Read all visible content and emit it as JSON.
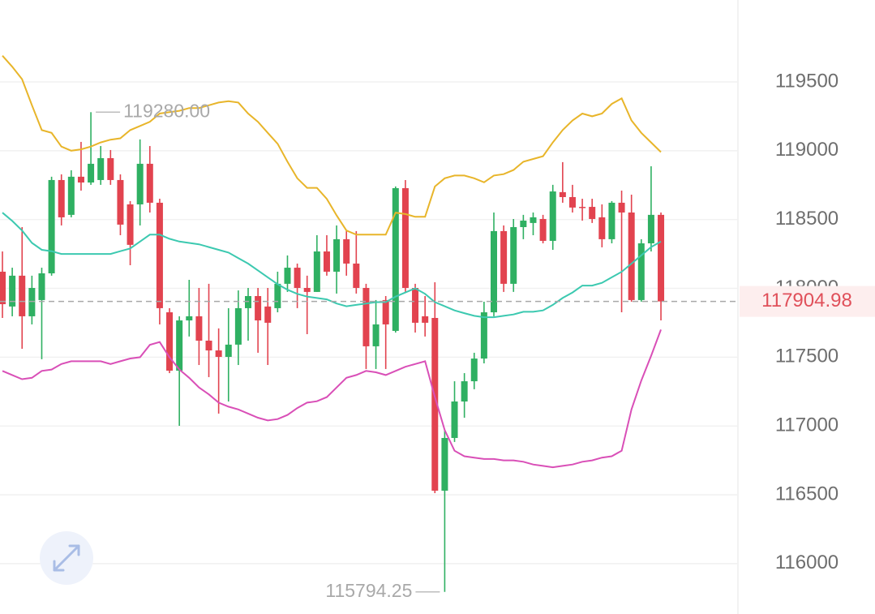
{
  "chart_data": {
    "type": "candlestick",
    "open": [
      118121,
      117868,
      118092,
      117797,
      117915,
      118109,
      118787,
      118534,
      118811,
      118769,
      118787,
      118946,
      118787,
      118610,
      118610,
      118905,
      118622,
      117826,
      117402,
      117767,
      117797,
      117620,
      117549,
      117502,
      117591,
      117856,
      117944,
      117868,
      117856,
      118033,
      118150,
      118003,
      117974,
      118268,
      118121,
      118357,
      118180,
      118003,
      117579,
      117915,
      117691,
      118728,
      118003,
      117797,
      117785,
      116530,
      116913,
      117178,
      117325,
      117490,
      117826,
      118416,
      118033,
      118445,
      118475,
      118504,
      118345,
      118699,
      118663,
      118592,
      118592,
      118516,
      118357,
      118622,
      118551,
      117915,
      118327,
      118534
    ],
    "high": [
      118268,
      118150,
      118445,
      118092,
      118150,
      118811,
      118828,
      118858,
      119064,
      119280,
      119034,
      119005,
      118828,
      118634,
      119082,
      119034,
      118651,
      117856,
      117797,
      118062,
      118003,
      118033,
      117709,
      117856,
      117985,
      118003,
      118003,
      118003,
      118121,
      118239,
      118180,
      118092,
      118386,
      118386,
      118457,
      118416,
      118416,
      118033,
      117915,
      117944,
      118740,
      118787,
      118033,
      117944,
      118044,
      116972,
      117325,
      117384,
      117532,
      117903,
      118551,
      118457,
      118504,
      118534,
      118551,
      118534,
      118752,
      118917,
      118752,
      118651,
      118651,
      118610,
      118634,
      118710,
      118681,
      118357,
      118887,
      118551
    ],
    "low": [
      117785,
      117797,
      117561,
      117738,
      117485,
      118092,
      118457,
      118516,
      118710,
      118752,
      118752,
      118752,
      118386,
      118168,
      118457,
      118551,
      117738,
      117384,
      117001,
      117650,
      117443,
      117355,
      117090,
      117178,
      117443,
      117620,
      117532,
      117443,
      117826,
      117974,
      117856,
      117667,
      117974,
      118092,
      117962,
      118092,
      117962,
      117414,
      117414,
      117414,
      117679,
      117974,
      117679,
      117650,
      116512,
      115794.25,
      116884,
      117060,
      117267,
      117455,
      117797,
      117974,
      117974,
      118357,
      118386,
      118327,
      118280,
      118622,
      118551,
      118492,
      118475,
      118298,
      118327,
      117826,
      117903,
      117903,
      118268,
      117767
    ],
    "close": [
      117885,
      118092,
      117797,
      118003,
      118109,
      118787,
      118516,
      118811,
      118769,
      118905,
      118946,
      118787,
      118463,
      118316,
      118905,
      118622,
      117856,
      117402,
      117767,
      117797,
      117620,
      117549,
      117502,
      117591,
      117856,
      117944,
      117767,
      117750,
      118033,
      118150,
      118003,
      117974,
      118268,
      118121,
      118357,
      118180,
      118003,
      117579,
      117738,
      117738,
      118728,
      118003,
      117750,
      117750,
      116530,
      116913,
      117178,
      117325,
      117490,
      117826,
      118416,
      118033,
      118445,
      118492,
      118516,
      118345,
      118704,
      118663,
      118587,
      118587,
      118504,
      118357,
      118622,
      118551,
      117915,
      118327,
      118534,
      117904.98
    ],
    "up_color": "#2fb062",
    "down_color": "#e2434f",
    "bands": [
      {
        "color": "#e8b52a",
        "values": [
          119690,
          119610,
          119520,
          119330,
          119150,
          119130,
          119030,
          119000,
          119010,
          119030,
          119060,
          119080,
          119090,
          119150,
          119180,
          119210,
          119270,
          119280,
          119290,
          119310,
          119310,
          119330,
          119350,
          119360,
          119350,
          119270,
          119210,
          119130,
          119050,
          118920,
          118800,
          118730,
          118730,
          118650,
          118530,
          118420,
          118390,
          118390,
          118390,
          118390,
          118550,
          118540,
          118520,
          118520,
          118740,
          118800,
          118820,
          118820,
          118800,
          118770,
          118820,
          118830,
          118860,
          118920,
          118940,
          118960,
          119060,
          119150,
          119220,
          119270,
          119250,
          119270,
          119340,
          119380,
          119220,
          119130,
          119060,
          118990
        ]
      },
      {
        "color": "#3cc9b0",
        "values": [
          118550,
          118490,
          118420,
          118330,
          118280,
          118270,
          118250,
          118250,
          118250,
          118250,
          118250,
          118250,
          118270,
          118290,
          118340,
          118390,
          118390,
          118360,
          118340,
          118330,
          118320,
          118300,
          118280,
          118260,
          118220,
          118180,
          118130,
          118080,
          118030,
          117990,
          117960,
          117940,
          117930,
          117920,
          117890,
          117870,
          117880,
          117890,
          117900,
          117900,
          117940,
          117970,
          118000,
          117960,
          117900,
          117870,
          117840,
          117820,
          117800,
          117790,
          117790,
          117800,
          117810,
          117830,
          117830,
          117840,
          117880,
          117930,
          117970,
          118020,
          118020,
          118040,
          118080,
          118120,
          118180,
          118240,
          118300,
          118340
        ]
      },
      {
        "color": "#d94fb7",
        "values": [
          117400,
          117370,
          117340,
          117350,
          117400,
          117410,
          117450,
          117470,
          117470,
          117470,
          117470,
          117450,
          117470,
          117490,
          117500,
          117590,
          117610,
          117500,
          117410,
          117350,
          117280,
          117230,
          117170,
          117140,
          117120,
          117090,
          117060,
          117040,
          117050,
          117080,
          117130,
          117170,
          117180,
          117210,
          117280,
          117350,
          117370,
          117400,
          117390,
          117370,
          117400,
          117430,
          117450,
          117470,
          117210,
          116970,
          116820,
          116780,
          116770,
          116760,
          116760,
          116750,
          116750,
          116740,
          116720,
          116710,
          116700,
          116710,
          116720,
          116740,
          116750,
          116770,
          116780,
          116820,
          117120,
          117330,
          117510,
          117700
        ]
      }
    ],
    "annotations": [
      {
        "value": 119280,
        "label": "119280.00"
      },
      {
        "value": 115794.25,
        "label": "115794.25"
      }
    ],
    "ylim": [
      115634,
      120095
    ],
    "yticks": [
      116000,
      116500,
      117000,
      117500,
      118000,
      118500,
      119000,
      119500
    ],
    "grid": true
  }
}
